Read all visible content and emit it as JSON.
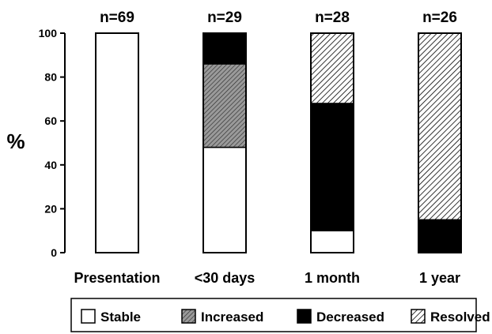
{
  "chart_data": {
    "type": "bar",
    "stacked": true,
    "ylabel": "%",
    "ylim": [
      0,
      100
    ],
    "yticks": [
      0,
      20,
      40,
      60,
      80,
      100
    ],
    "grid": false,
    "legend_position": "bottom",
    "categories": [
      "Presentation",
      "<30 days",
      "1 month",
      "1 year"
    ],
    "counts": [
      "n=69",
      "n=29",
      "n=28",
      "n=26"
    ],
    "series": [
      {
        "name": "Stable",
        "pattern": "white",
        "values": [
          100,
          48,
          10,
          0
        ]
      },
      {
        "name": "Increased",
        "pattern": "crosshatch",
        "values": [
          0,
          38,
          0,
          0
        ]
      },
      {
        "name": "Decreased",
        "pattern": "solid",
        "values": [
          0,
          14,
          58,
          15
        ]
      },
      {
        "name": "Resolved",
        "pattern": "diagonal",
        "values": [
          0,
          0,
          32,
          85
        ]
      }
    ],
    "colors": {
      "ink": "#000000",
      "paper": "#ffffff",
      "increased_fill": "#8a8a8a"
    }
  }
}
